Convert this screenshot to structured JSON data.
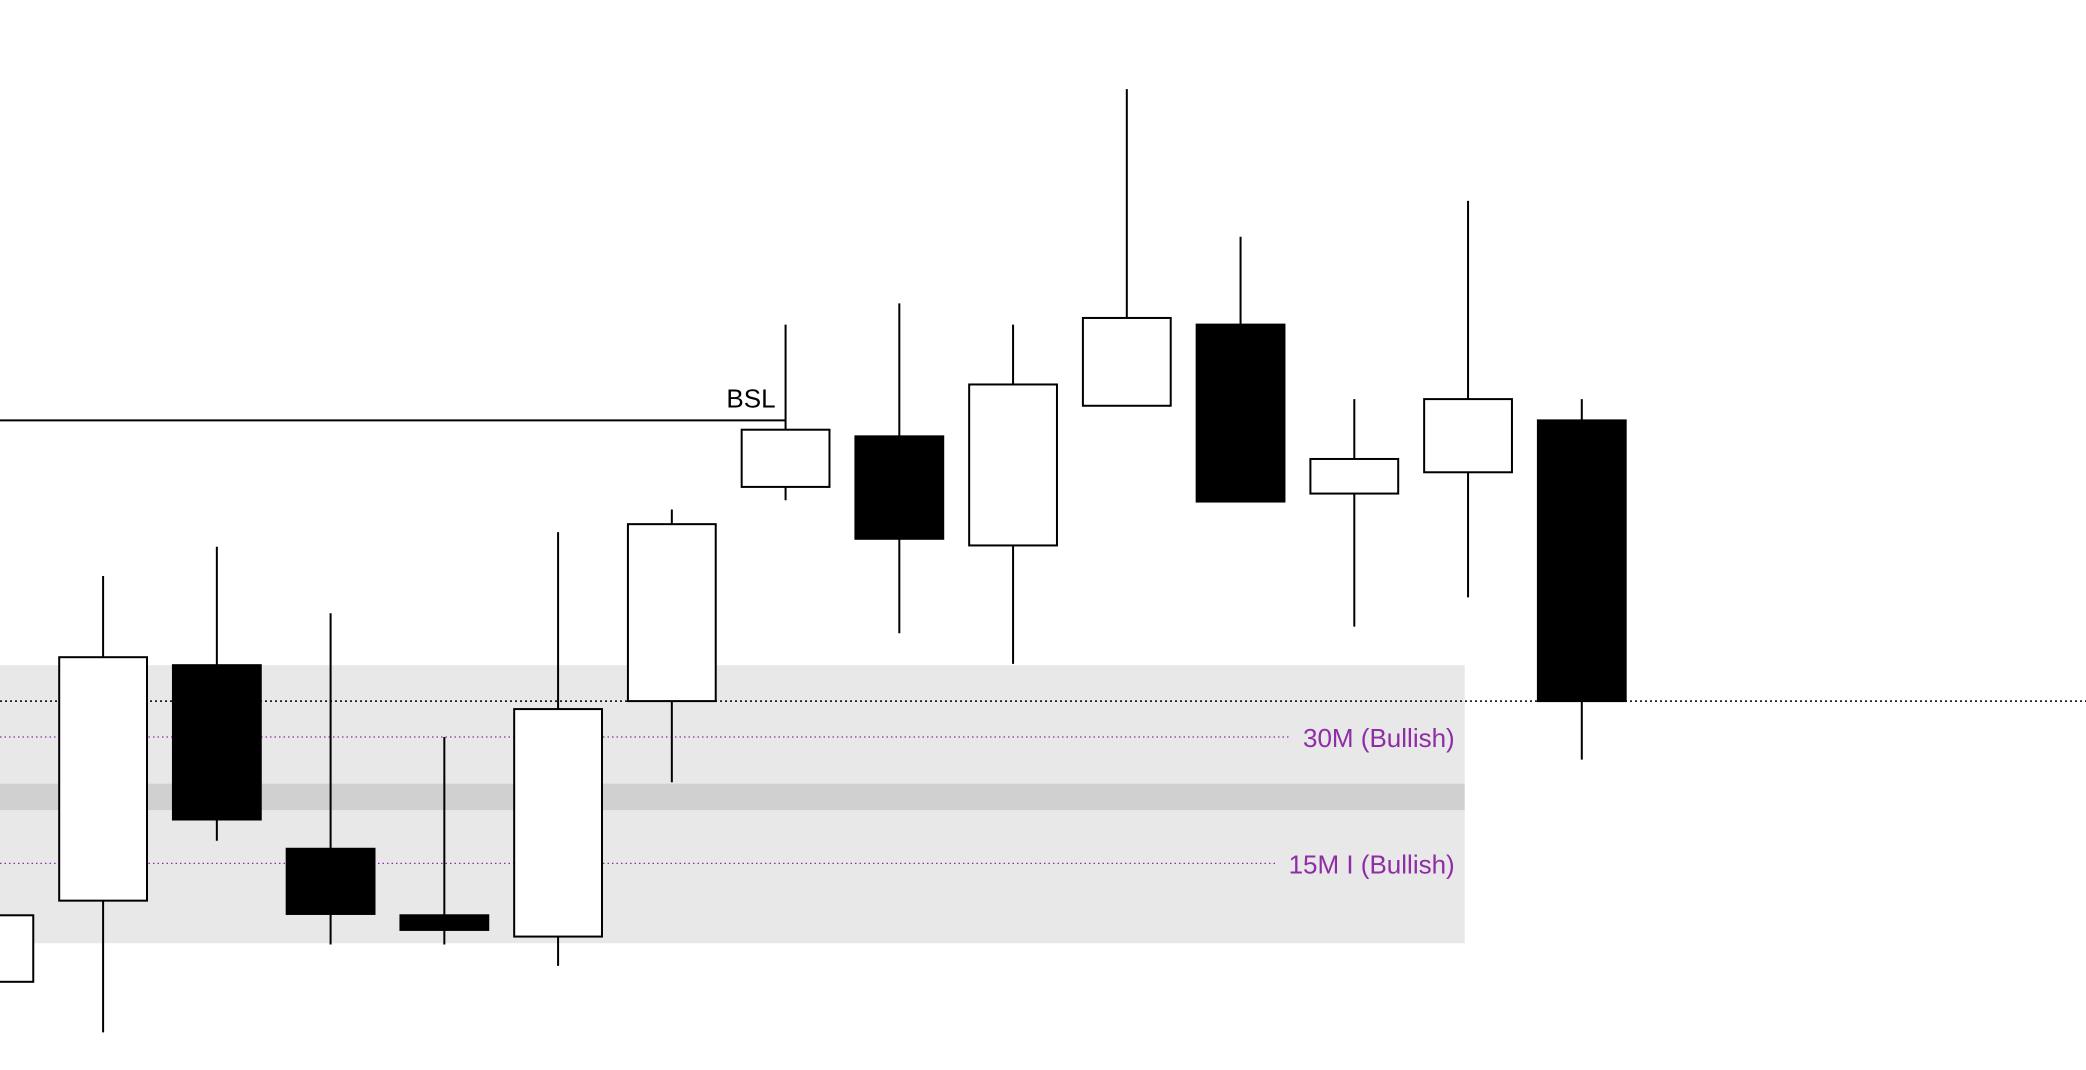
{
  "chart_data": {
    "type": "candlestick",
    "categories": [
      null,
      null,
      null,
      null,
      null,
      null,
      null,
      null,
      null,
      null,
      null,
      null,
      null,
      null,
      null
    ],
    "open": [
      62,
      123,
      300,
      162,
      112,
      96,
      273,
      434,
      472,
      390,
      495,
      556,
      429,
      445,
      484
    ],
    "high": [
      112,
      367,
      389,
      339,
      246,
      400,
      417,
      556,
      572,
      556,
      733,
      622,
      500,
      649,
      500
    ],
    "low": [
      62,
      24,
      168,
      90,
      90,
      74,
      212,
      424,
      324,
      301,
      495,
      423,
      329,
      351,
      229
    ],
    "close": [
      112,
      306,
      184,
      113,
      101,
      267,
      406,
      477,
      395,
      511,
      561,
      423,
      455,
      500,
      273
    ],
    "up_color": "#ffffff",
    "down_color": "#000000",
    "ylim": [
      0,
      800
    ],
    "levels": [
      {
        "label": "BSL",
        "value": 484,
        "style": "solid"
      },
      {
        "value": 273,
        "style": "dotted"
      }
    ],
    "zones": [
      {
        "label": "30M (Bullish)",
        "top": 300,
        "bottom": 211,
        "mid": 246
      },
      {
        "label": "15M I (Bullish)",
        "top": 191,
        "bottom": 91,
        "mid": 151
      }
    ],
    "zone_color": "#e8e8e8",
    "zone_overlap_color": "#d0d0d0",
    "zone_label_color": "#8e2da6"
  }
}
